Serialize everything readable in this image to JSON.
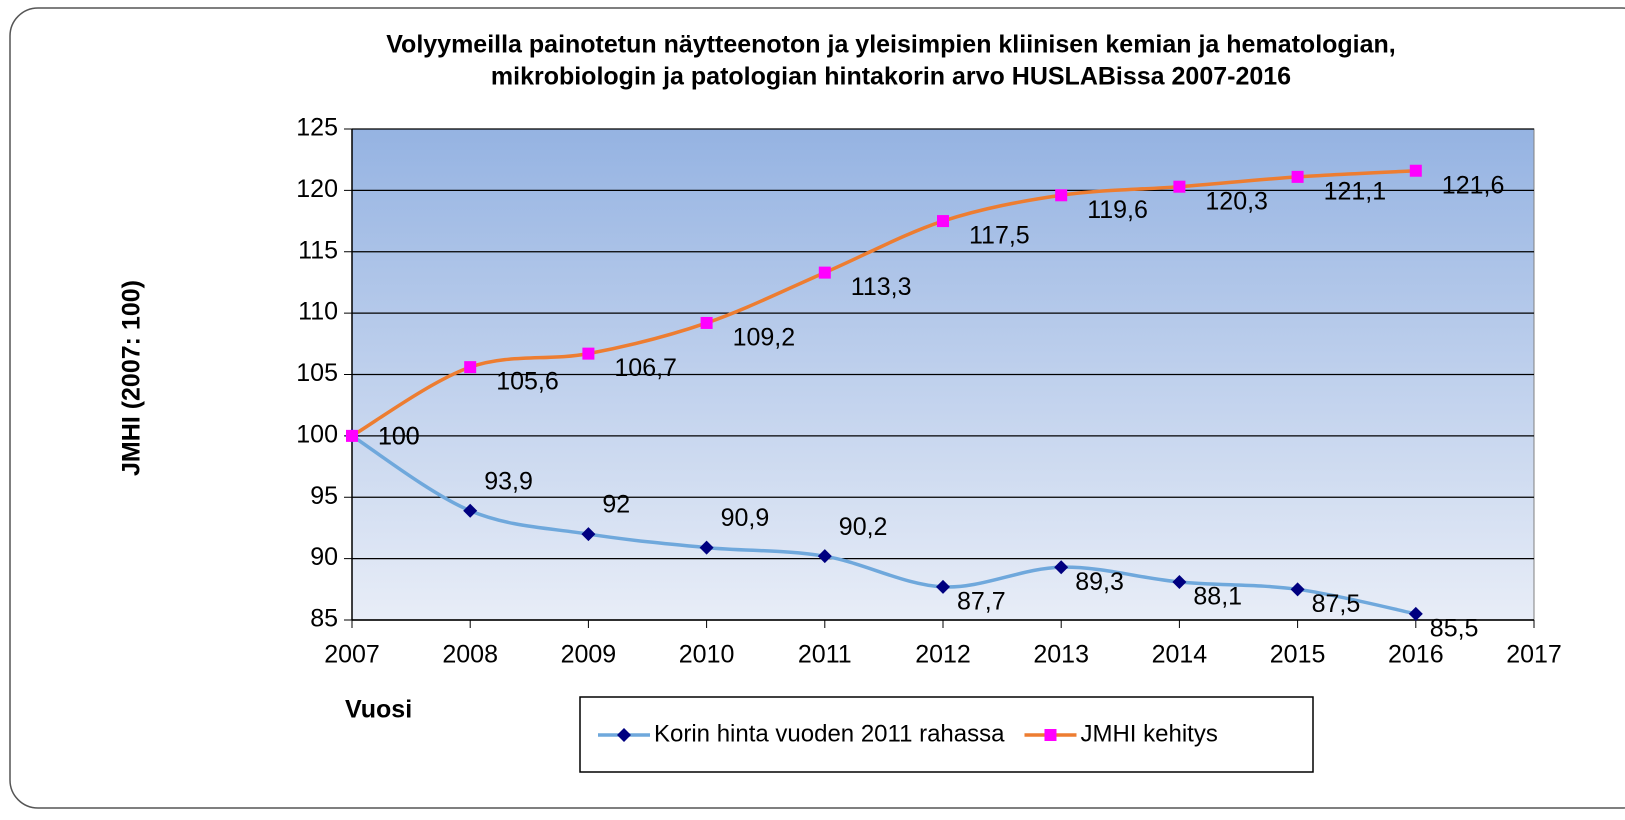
{
  "chart_data": {
    "type": "line",
    "title": [
      "Volyymeilla  painotetun näytteenoton  ja yleisimpien kliinisen kemian ja hematologian,",
      "mikrobiologin ja patologian hintakorin arvo HUSLABissa 2007-2016"
    ],
    "x_label": "Vuosi",
    "y_label": "JMHI (2007: 100)",
    "x": [
      2007,
      2008,
      2009,
      2010,
      2011,
      2012,
      2013,
      2014,
      2015,
      2016
    ],
    "series": [
      {
        "name": "Korin hinta vuoden 2011 rahassa",
        "color": "#6fa8dc",
        "marker_color": "#000080",
        "marker": "diamond",
        "values": [
          100,
          93.9,
          92,
          90.9,
          90.2,
          87.7,
          89.3,
          88.1,
          87.5,
          85.5
        ],
        "value_labels": [
          "100",
          "93,9",
          "92",
          "90,9",
          "90,2",
          "87,7",
          "89,3",
          "88,1",
          "87,5",
          "85,5"
        ]
      },
      {
        "name": "JMHI kehitys",
        "color": "#ed7d31",
        "marker_color": "#ff00ff",
        "marker": "square",
        "values": [
          100,
          105.6,
          106.7,
          109.2,
          113.3,
          117.5,
          119.6,
          120.3,
          121.1,
          121.6
        ],
        "value_labels": [
          "100",
          "105,6",
          "106,7",
          "109,2",
          "113,3",
          "117,5",
          "119,6",
          "120,3",
          "121,1",
          "121,6"
        ]
      }
    ],
    "xlim": [
      2007,
      2017
    ],
    "xticks": [
      2007,
      2008,
      2009,
      2010,
      2011,
      2012,
      2013,
      2014,
      2015,
      2016,
      2017
    ],
    "ylim": [
      85,
      125
    ],
    "yticks": [
      85,
      90,
      95,
      100,
      105,
      110,
      115,
      120,
      125
    ],
    "grid": true,
    "legend": "bottom"
  }
}
